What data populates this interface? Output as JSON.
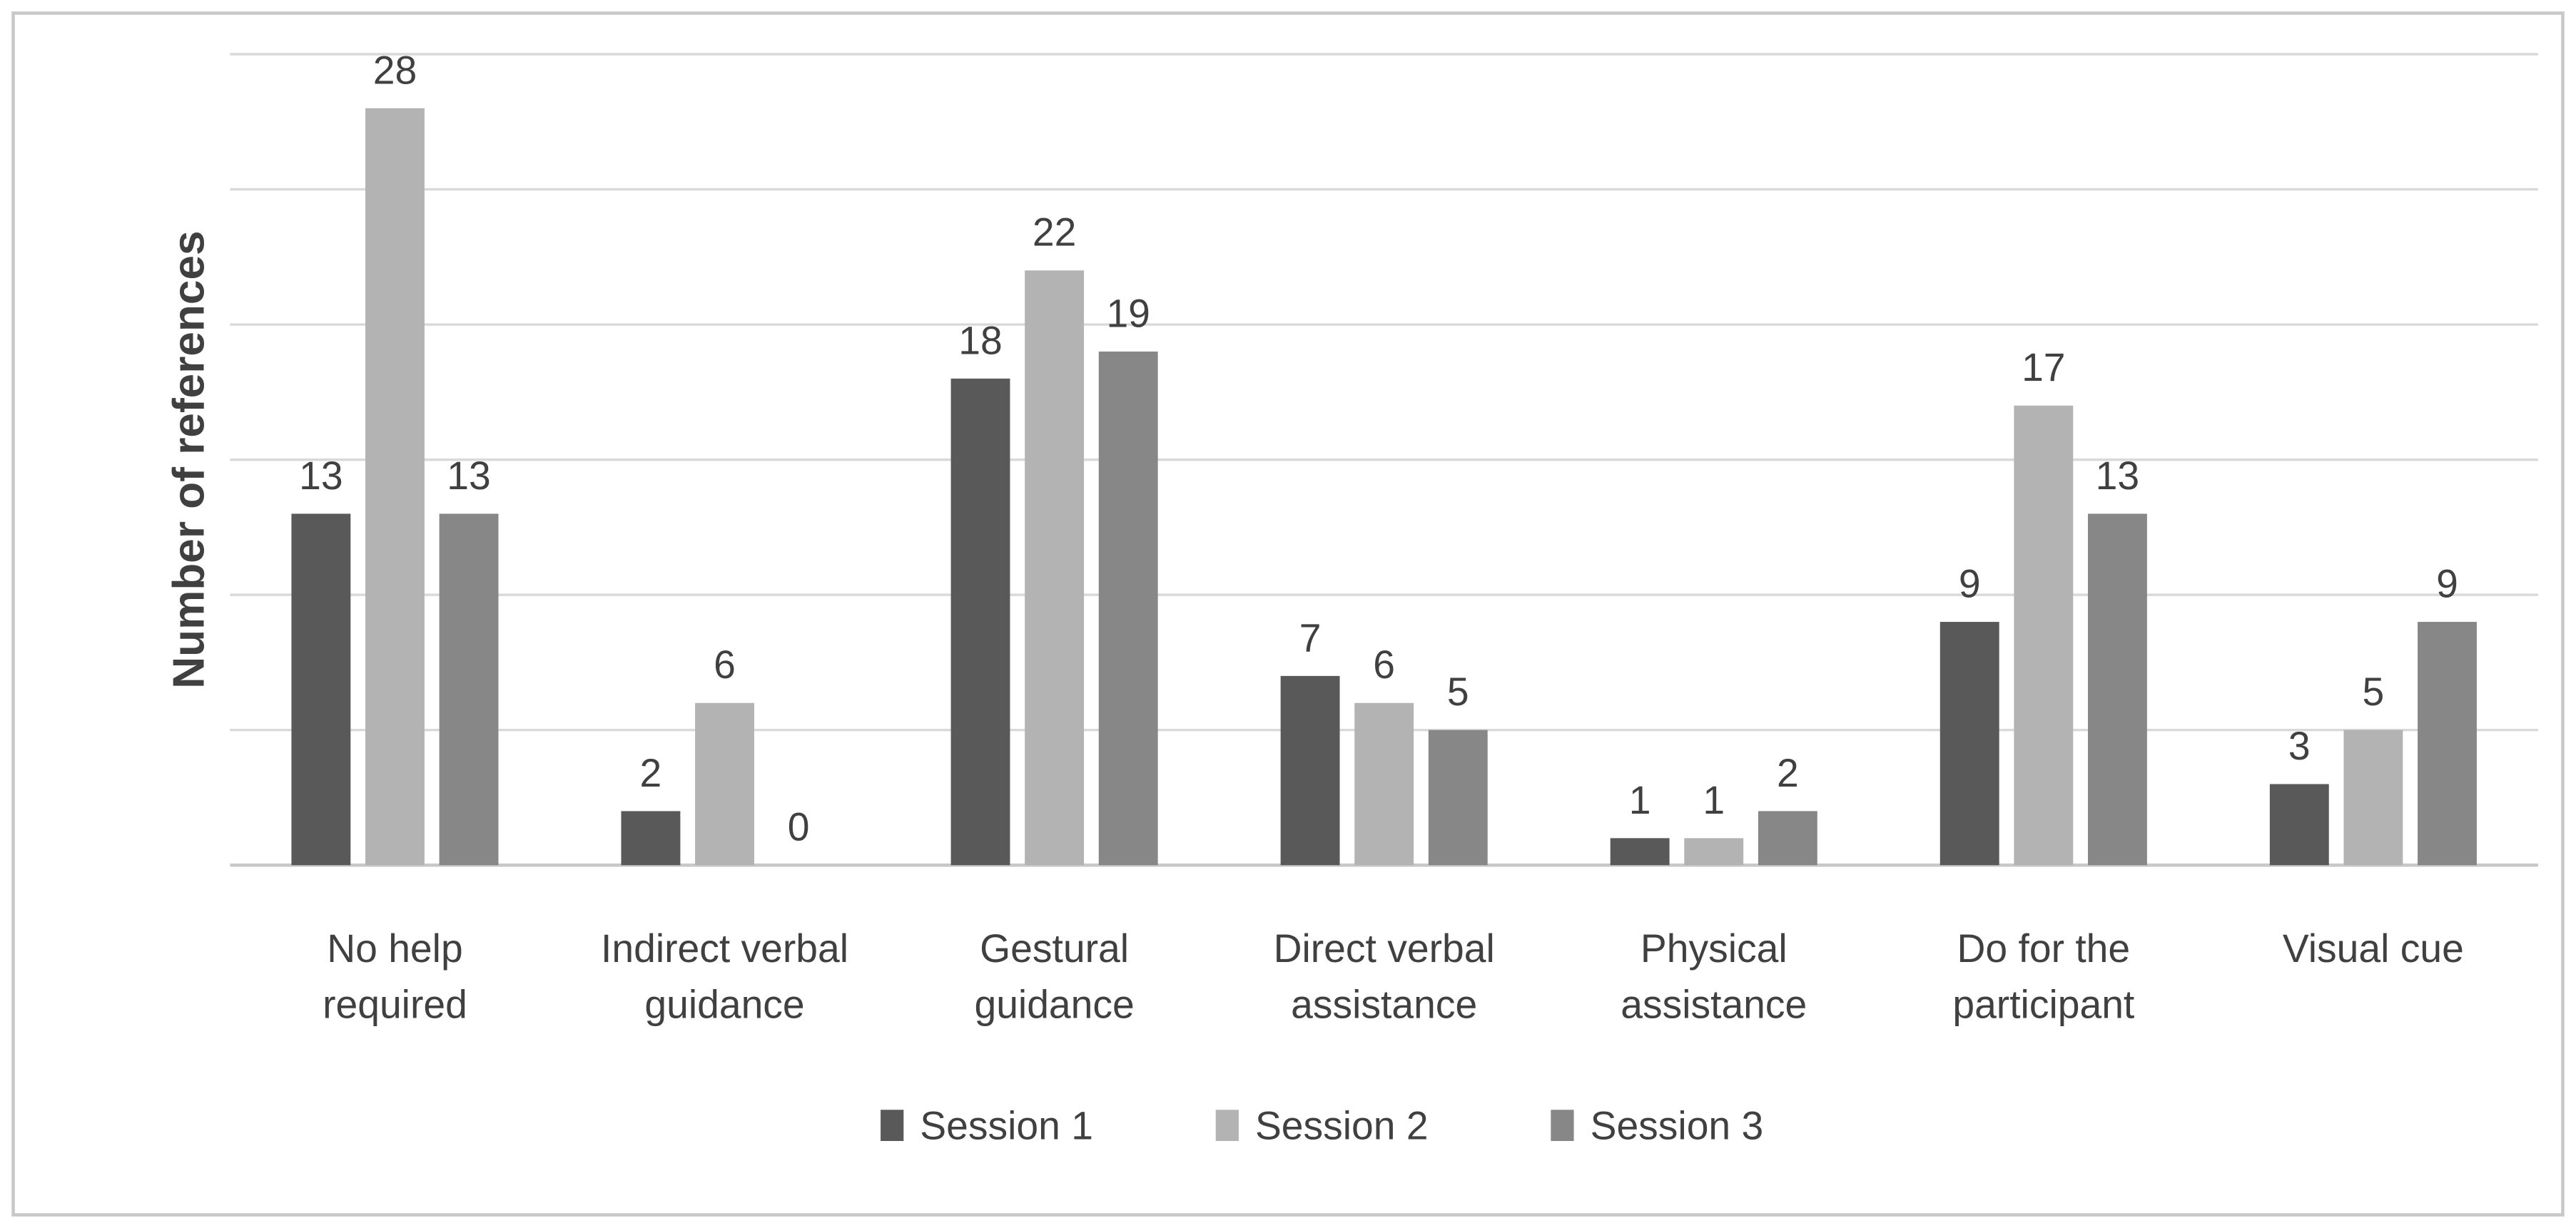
{
  "chart_data": {
    "type": "bar",
    "title": "",
    "xlabel": "",
    "ylabel": "Number of references",
    "ylim": [
      0,
      30
    ],
    "gridlines": [
      0,
      5,
      10,
      15,
      20,
      25,
      30
    ],
    "grid": true,
    "y_tick_labels_shown": false,
    "legend_position": "bottom",
    "categories": [
      [
        "No help",
        "required"
      ],
      [
        "Indirect verbal",
        "guidance"
      ],
      [
        "Gestural",
        "guidance"
      ],
      [
        "Direct verbal",
        "assistance"
      ],
      [
        "Physical",
        "assistance"
      ],
      [
        "Do for the",
        "participant"
      ],
      [
        "Visual cue"
      ]
    ],
    "series": [
      {
        "name": "Session 1",
        "color": "#595959",
        "values": [
          13,
          2,
          18,
          7,
          1,
          9,
          3
        ]
      },
      {
        "name": "Session 2",
        "color": "#b3b3b3",
        "values": [
          28,
          6,
          22,
          6,
          1,
          17,
          5
        ]
      },
      {
        "name": "Session 3",
        "color": "#878787",
        "values": [
          13,
          0,
          19,
          5,
          2,
          13,
          9
        ]
      }
    ]
  }
}
